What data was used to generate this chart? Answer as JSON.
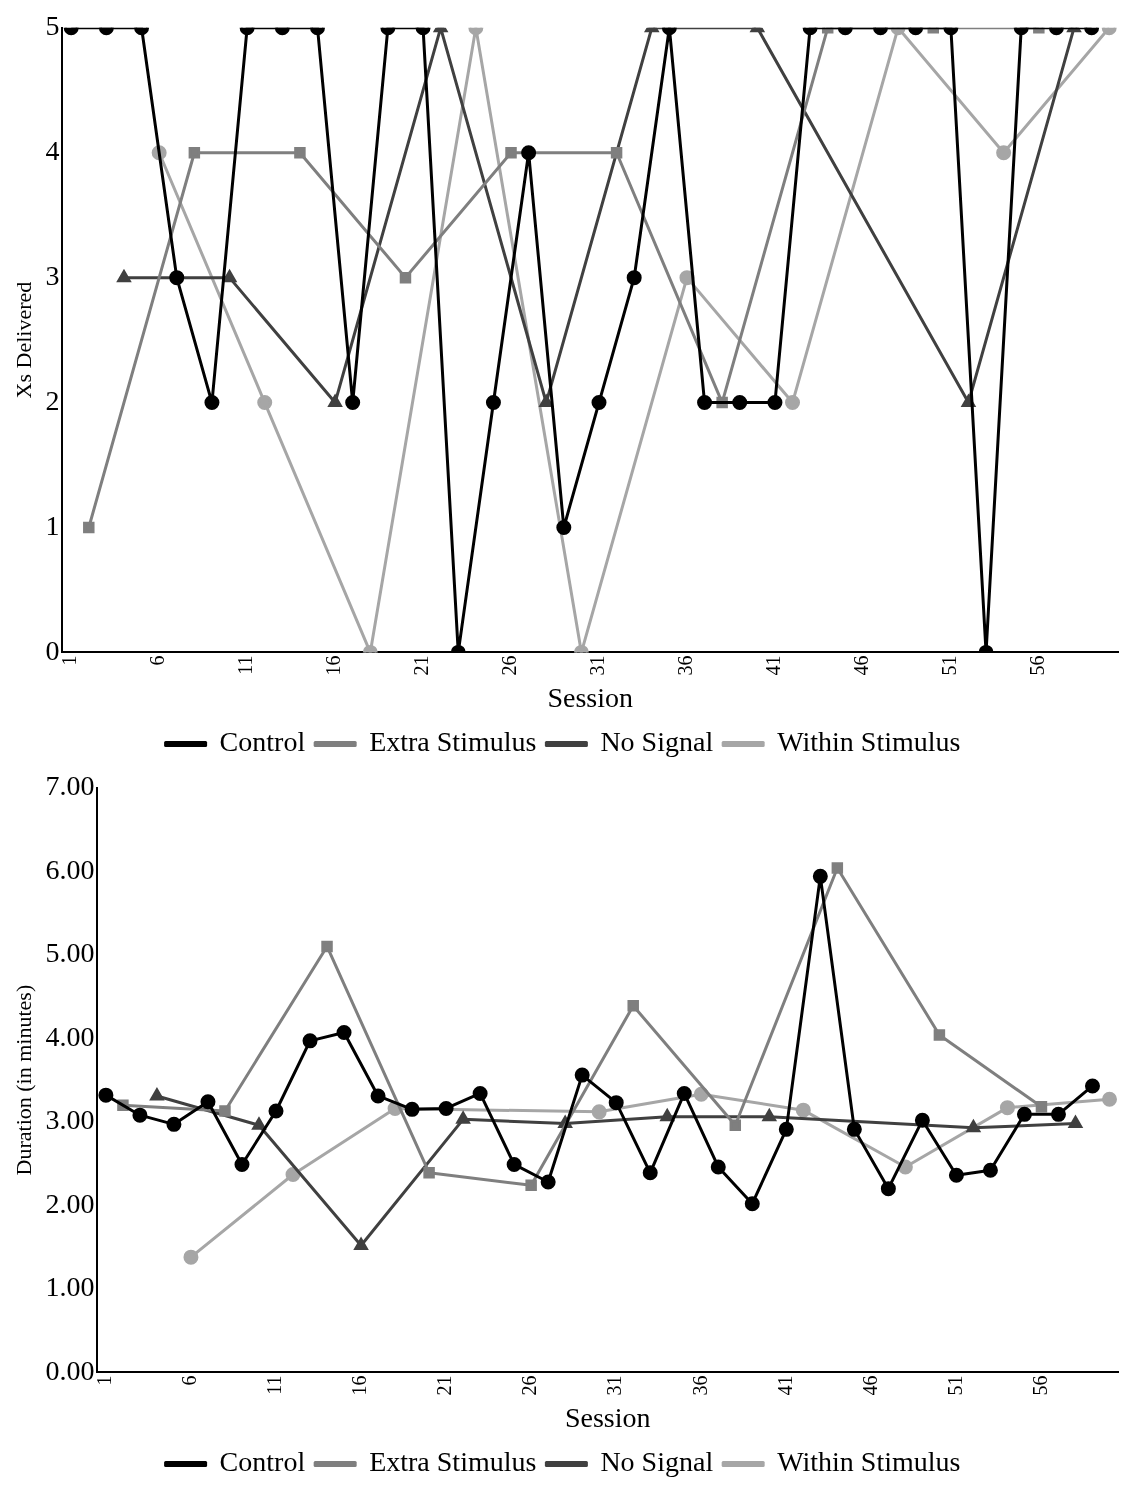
{
  "chart_data": [
    {
      "type": "line",
      "xlabel": "Session",
      "ylabel": "Xs Delivered",
      "xlim": [
        0.5,
        60.5
      ],
      "xticks": [
        1,
        6,
        11,
        16,
        21,
        26,
        31,
        36,
        41,
        46,
        51,
        56
      ],
      "ylim": [
        0,
        5
      ],
      "yticks": [
        0,
        1,
        2,
        3,
        4,
        5
      ],
      "grid": false,
      "legend": "bottom",
      "line_style": "solid",
      "series": [
        {
          "name": "Control",
          "color": "#000000",
          "marker": "circle",
          "x": [
            1,
            3,
            5,
            7,
            9,
            11,
            13,
            15,
            17,
            19,
            21,
            23,
            25,
            27,
            29,
            31,
            33,
            35,
            37,
            39,
            41,
            43,
            45,
            47,
            49,
            51,
            53,
            55,
            57,
            59
          ],
          "values": [
            5,
            5,
            5,
            3,
            2,
            5,
            5,
            5,
            2,
            5,
            5,
            0,
            2,
            4,
            1,
            2,
            3,
            5,
            2,
            2,
            2,
            5,
            5,
            5,
            5,
            5,
            0,
            5,
            5,
            5
          ]
        },
        {
          "name": "Extra Stimulus",
          "color": "#7f7f7f",
          "marker": "square",
          "x": [
            2,
            8,
            14,
            20,
            26,
            32,
            38,
            44,
            50,
            56
          ],
          "values": [
            1,
            4,
            4,
            3,
            4,
            4,
            2,
            5,
            5,
            5
          ]
        },
        {
          "name": "No Signal",
          "color": "#404040",
          "marker": "triangle",
          "x": [
            4,
            10,
            16,
            22,
            28,
            34,
            40,
            52,
            58
          ],
          "values": [
            3,
            3,
            2,
            5,
            2,
            5,
            5,
            2,
            5
          ]
        },
        {
          "name": "Within Stimulus",
          "color": "#a6a6a6",
          "marker": "circle",
          "x": [
            6,
            12,
            18,
            24,
            30,
            36,
            42,
            48,
            54,
            60
          ],
          "values": [
            4,
            2,
            0,
            5,
            0,
            3,
            2,
            5,
            4,
            5
          ]
        }
      ]
    },
    {
      "type": "line",
      "xlabel": "Session",
      "ylabel": "Duration (in minutes)",
      "xlim": [
        0.5,
        60.5
      ],
      "xticks": [
        1,
        6,
        11,
        16,
        21,
        26,
        31,
        36,
        41,
        46,
        51,
        56
      ],
      "ylim": [
        0,
        7
      ],
      "yticks": [
        {
          "value": 0,
          "label": "0.00"
        },
        {
          "value": 1,
          "label": "1.00"
        },
        {
          "value": 2,
          "label": "2.00"
        },
        {
          "value": 3,
          "label": "3.00"
        },
        {
          "value": 4,
          "label": "4.00"
        },
        {
          "value": 5,
          "label": "5.00"
        },
        {
          "value": 6,
          "label": "6.00"
        },
        {
          "value": 7,
          "label": "7.00"
        }
      ],
      "grid": false,
      "legend": "bottom",
      "line_style": "solid",
      "series": [
        {
          "name": "Control",
          "color": "#000000",
          "marker": "circle",
          "x": [
            1,
            3,
            5,
            7,
            9,
            11,
            13,
            15,
            17,
            19,
            21,
            23,
            25,
            27,
            29,
            31,
            33,
            35,
            37,
            39,
            41,
            43,
            45,
            47,
            49,
            51,
            53,
            55,
            57,
            59
          ],
          "values": [
            3.32,
            3.08,
            2.97,
            3.24,
            2.49,
            3.13,
            3.97,
            4.07,
            3.31,
            3.15,
            3.16,
            3.34,
            2.49,
            2.28,
            3.56,
            3.23,
            2.39,
            3.34,
            2.46,
            2.02,
            2.91,
            5.94,
            2.91,
            2.2,
            3.02,
            2.36,
            2.42,
            3.09,
            3.09,
            3.43
          ]
        },
        {
          "name": "Extra Stimulus",
          "color": "#7f7f7f",
          "marker": "square",
          "x": [
            2,
            8,
            14,
            20,
            26,
            32,
            38,
            44,
            50,
            56
          ],
          "values": [
            3.2,
            3.13,
            5.1,
            2.39,
            2.24,
            4.39,
            2.96,
            6.04,
            4.04,
            3.18
          ]
        },
        {
          "name": "No Signal",
          "color": "#404040",
          "marker": "triangle",
          "x": [
            4,
            10,
            16,
            22,
            28,
            34,
            40,
            52,
            58
          ],
          "values": [
            3.31,
            2.96,
            1.52,
            3.03,
            2.98,
            3.06,
            3.06,
            2.93,
            2.98
          ]
        },
        {
          "name": "Within Stimulus",
          "color": "#a6a6a6",
          "marker": "circle",
          "x": [
            6,
            12,
            18,
            30,
            36,
            42,
            48,
            54,
            60
          ],
          "values": [
            1.38,
            2.37,
            3.16,
            3.12,
            3.33,
            3.14,
            2.46,
            3.17,
            3.27
          ]
        }
      ]
    }
  ]
}
